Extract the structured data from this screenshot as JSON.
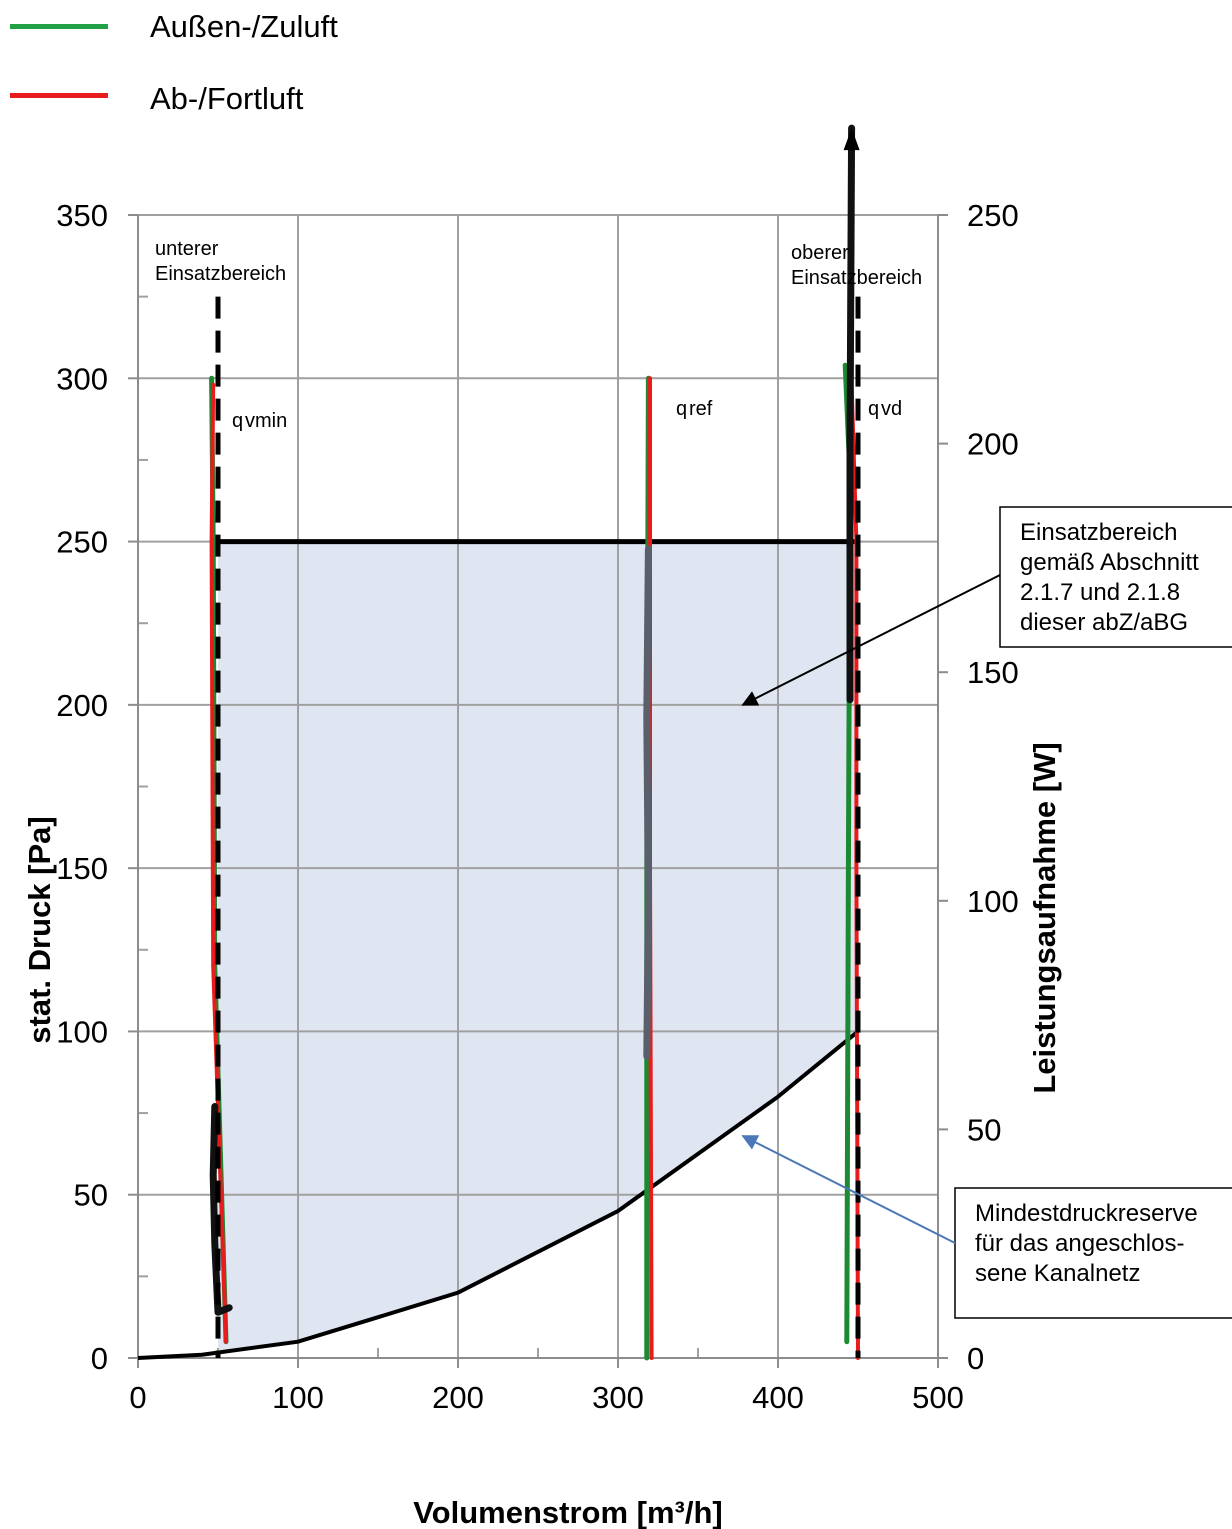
{
  "legend": [
    {
      "label": "Außen-/Zuluft",
      "color": "#22a046"
    },
    {
      "label": "Ab-/Fortluft",
      "color": "#e81c1c"
    }
  ],
  "chart_data": {
    "type": "line",
    "xlabel": "Volumenstrom [m³/h]",
    "ylabel": "stat. Druck [Pa]",
    "y2label": "Leistungsaufnahme [W]",
    "xlim": [
      0,
      500
    ],
    "ylim": [
      0,
      350
    ],
    "y2lim": [
      0,
      250
    ],
    "x_ticks": [
      "0",
      "100",
      "200",
      "300",
      "400",
      "500"
    ],
    "y_ticks": [
      "0",
      "50",
      "100",
      "150",
      "200",
      "250",
      "300",
      "350"
    ],
    "y2_ticks": [
      "0",
      "50",
      "100",
      "150",
      "200",
      "250"
    ],
    "grid": true,
    "series": [
      {
        "name": "Außen-/Zuluft",
        "color": "#1c8a32",
        "lines": [
          [
            [
              55,
              5
            ],
            [
              48,
              120
            ],
            [
              47,
              250
            ],
            [
              46,
              300
            ]
          ],
          [
            [
              318,
              0
            ],
            [
              318,
              150
            ],
            [
              319,
              300
            ]
          ],
          [
            [
              443,
              5
            ],
            [
              444,
              150
            ],
            [
              445,
              270
            ],
            [
              442,
              304
            ]
          ]
        ]
      },
      {
        "name": "Ab-/Fortluft",
        "color": "#e81c1c",
        "lines": [
          [
            [
              55,
              5
            ],
            [
              47,
              120
            ],
            [
              46,
              250
            ],
            [
              47,
              298
            ]
          ],
          [
            [
              321,
              0
            ],
            [
              320,
              150
            ],
            [
              320,
              300
            ]
          ],
          [
            [
              450,
              0
            ],
            [
              449,
              150
            ],
            [
              449,
              250
            ],
            [
              446,
              298
            ]
          ]
        ]
      }
    ],
    "power_curves": [
      [
        [
          48,
          55
        ],
        [
          47,
          40
        ],
        [
          48,
          25
        ],
        [
          50,
          10
        ],
        [
          57,
          11
        ]
      ],
      [
        [
          319,
          177
        ],
        [
          318,
          140
        ],
        [
          319,
          100
        ],
        [
          318,
          66
        ]
      ],
      [
        [
          445,
          144
        ],
        [
          445,
          200
        ],
        [
          446,
          269
        ]
      ]
    ],
    "system_curve": [
      [
        0,
        0
      ],
      [
        40,
        1
      ],
      [
        100,
        5
      ],
      [
        200,
        20
      ],
      [
        300,
        45
      ],
      [
        400,
        80
      ],
      [
        450,
        100
      ]
    ],
    "operating_range": {
      "pressure_limit": 250,
      "x_min": 50,
      "x_max": 450
    },
    "vertical_markers": [
      {
        "x": 50,
        "label_top": [
          "unterer",
          "Einsatzbereich"
        ],
        "q_main": "q",
        "q_sub": "vmin"
      },
      {
        "x": 320,
        "q_main": "q",
        "q_sub": "ref"
      },
      {
        "x": 450,
        "label_top": [
          "oberer",
          "Einsatzbereich"
        ],
        "q_main": "q",
        "q_sub": "vd"
      }
    ],
    "annotations": [
      {
        "lines": [
          "Einsatzbereich",
          "gemäß Abschnitt",
          "2.1.7 und 2.1.8",
          "dieser abZ/aBG"
        ],
        "target": [
          378,
          200
        ]
      },
      {
        "lines": [
          "Mindestdruckreserve",
          "für das angeschlos-",
          "sene Kanalnetz"
        ],
        "target": [
          378,
          68
        ]
      }
    ]
  }
}
